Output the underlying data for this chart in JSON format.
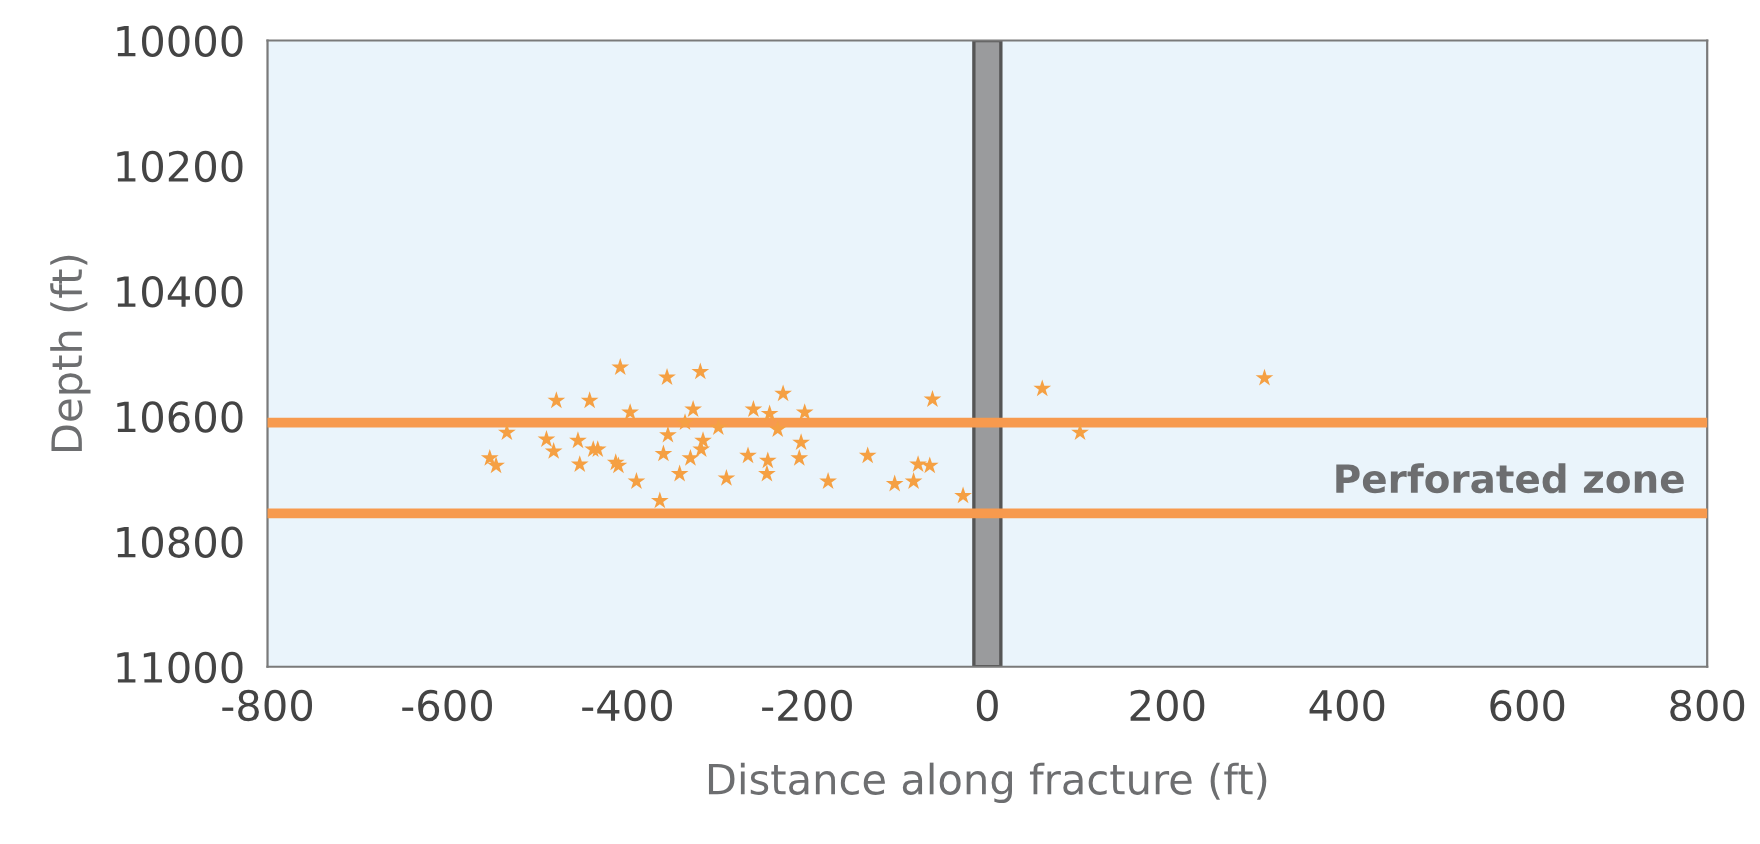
{
  "chart_data": {
    "type": "scatter",
    "xlabel": "Distance along fracture (ft)",
    "ylabel": "Depth (ft)",
    "xlim": [
      -800,
      800
    ],
    "xticks": [
      -800,
      -600,
      -400,
      -200,
      0,
      200,
      400,
      600,
      800
    ],
    "ylim": [
      11000,
      10000
    ],
    "yticks": [
      10000,
      10200,
      10400,
      10600,
      10800,
      11000
    ],
    "grid": false,
    "marker": "star",
    "x": [
      -408,
      -356,
      -319,
      -479,
      -442,
      -397,
      -327,
      -260,
      -227,
      -242,
      -203,
      -61,
      -534,
      -490,
      -482,
      -455,
      -438,
      -433,
      -355,
      -336,
      -299,
      -316,
      -318,
      -233,
      -207,
      -553,
      -546,
      -453,
      -413,
      -410,
      -360,
      -330,
      -266,
      -244,
      -245,
      -209,
      -133,
      -77,
      -64,
      -390,
      -342,
      -290,
      -177,
      -103,
      -82,
      -364,
      -27,
      61,
      103,
      308
    ],
    "series": [
      {
        "color": "#f5a043",
        "values": [
          10522,
          10538,
          10529,
          10575,
          10575,
          10594,
          10589,
          10589,
          10564,
          10596,
          10594,
          10573,
          10626,
          10637,
          10656,
          10639,
          10653,
          10653,
          10630,
          10610,
          10618,
          10639,
          10653,
          10621,
          10642,
          10667,
          10679,
          10677,
          10674,
          10679,
          10660,
          10667,
          10663,
          10671,
          10692,
          10667,
          10663,
          10677,
          10679,
          10704,
          10692,
          10699,
          10704,
          10708,
          10704,
          10735,
          10727,
          10556,
          10626,
          10539
        ]
      }
    ],
    "ref_lines": [
      {
        "axis": "y",
        "value": 10610,
        "color": "#f79a4e",
        "line_style": "solid"
      },
      {
        "axis": "y",
        "value": 10755,
        "color": "#f79a4e",
        "line_style": "solid"
      }
    ],
    "bands": [
      {
        "axis": "x",
        "from": -15,
        "to": 15,
        "color": "#9a9b9d"
      }
    ],
    "annotations": [
      "Perforated zone"
    ]
  }
}
